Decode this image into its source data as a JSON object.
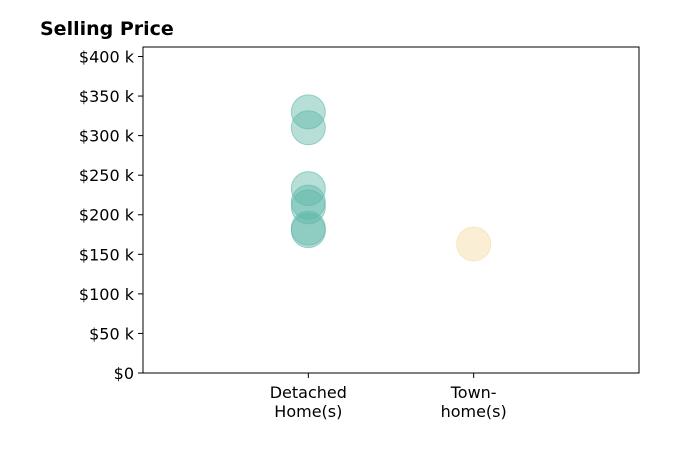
{
  "chart_data": {
    "type": "scatter",
    "title": "Selling Price",
    "xlabel": "",
    "ylabel": "",
    "categories": [
      [
        "Detached",
        "Home(s)"
      ],
      [
        "Town-",
        "home(s)"
      ]
    ],
    "y_tick_labels": [
      "$0",
      "$50 k",
      "$100 k",
      "$150 k",
      "$200 k",
      "$250 k",
      "$300 k",
      "$350 k",
      "$400 k"
    ],
    "y_ticks": [
      0,
      50000,
      100000,
      150000,
      200000,
      250000,
      300000,
      350000,
      400000
    ],
    "ylim": [
      0,
      412000
    ],
    "xlim": [
      -1,
      2
    ],
    "grid": false,
    "legend": "none",
    "series": [
      {
        "category": "Detached Home(s)",
        "color": "#5fb8a8",
        "values": [
          330000,
          310000,
          233000,
          216000,
          210000,
          183000,
          180000
        ]
      },
      {
        "category": "Town-home(s)",
        "color": "#f3dca0",
        "values": [
          163000
        ]
      }
    ]
  }
}
